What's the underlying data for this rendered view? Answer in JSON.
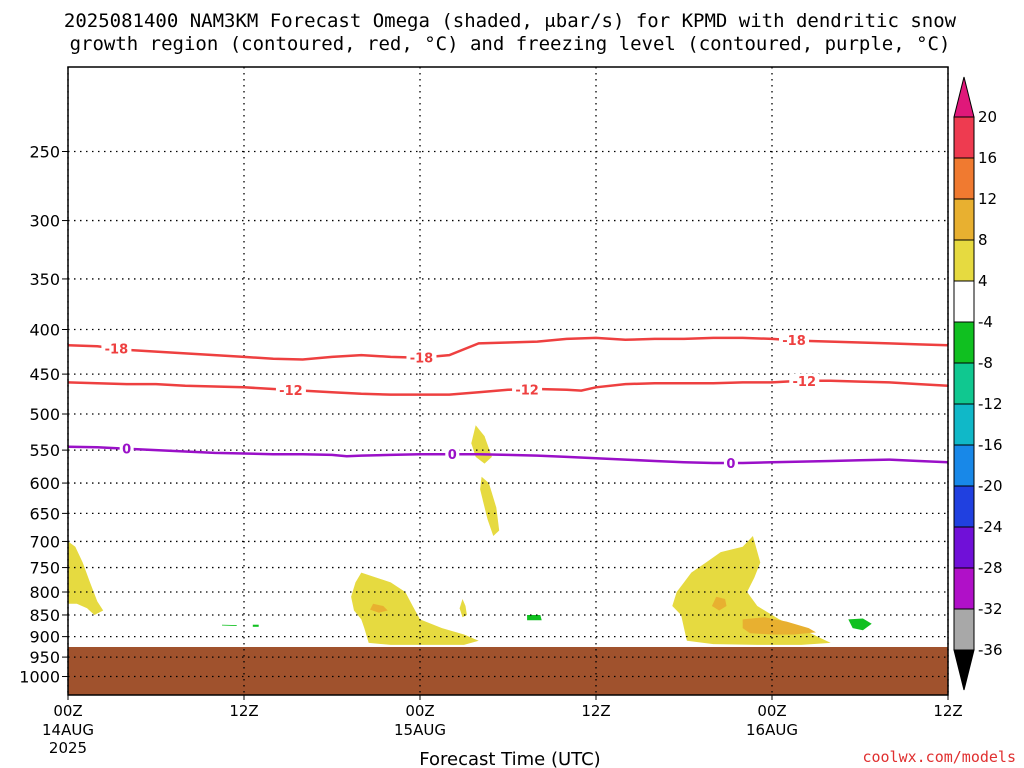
{
  "title": {
    "line1": "2025081400 NAM3KM Forecast Omega (shaded, μbar/s) for KPMD with dendritic snow",
    "line2": "growth region (contoured, red, °C) and freezing level (contoured, purple, °C)"
  },
  "credit": "coolwx.com/models",
  "chart_data": {
    "type": "heatmap",
    "xlabel": "Forecast Time (UTC)",
    "ylabel": "",
    "x_units": "hours since 2025-08-14 00Z",
    "xlim": [
      0,
      60
    ],
    "ylim": [
      1050,
      200
    ],
    "y_scale": "log-pressure",
    "grid": true,
    "x_ticks": [
      {
        "value": 0,
        "label": "00Z",
        "sub1": "14AUG",
        "sub2": "2025"
      },
      {
        "value": 12,
        "label": "12Z",
        "sub1": "",
        "sub2": ""
      },
      {
        "value": 24,
        "label": "00Z",
        "sub1": "15AUG",
        "sub2": ""
      },
      {
        "value": 36,
        "label": "12Z",
        "sub1": "",
        "sub2": ""
      },
      {
        "value": 48,
        "label": "00Z",
        "sub1": "16AUG",
        "sub2": ""
      },
      {
        "value": 60,
        "label": "12Z",
        "sub1": "",
        "sub2": ""
      }
    ],
    "y_ticks": [
      250,
      300,
      350,
      400,
      450,
      500,
      550,
      600,
      650,
      700,
      750,
      800,
      850,
      900,
      950,
      1000
    ],
    "y_tick_labels": [
      "250",
      "300",
      "350",
      "400",
      "450",
      "500",
      "550",
      "600",
      "650",
      "700",
      "750",
      "800",
      "850",
      "900",
      "950",
      "1000"
    ],
    "terrain": {
      "color": "#a0522d",
      "pressure": 925
    },
    "colorbar": {
      "labels": [
        "20",
        "16",
        "12",
        "8",
        "4",
        "-4",
        "-8",
        "-12",
        "-16",
        "-20",
        "-24",
        "-28",
        "-32",
        "-36"
      ],
      "colors": [
        "#ee3b50",
        "#f07a30",
        "#e8b030",
        "#e6da40",
        "#ffffff",
        "#10c020",
        "#10c890",
        "#10b8c8",
        "#1888e8",
        "#2040e0",
        "#7010d8",
        "#b010c8",
        "#a8a8a8"
      ],
      "top_color": "#e0187a",
      "bottom_color": "#000000"
    },
    "contours": [
      {
        "name": "-18",
        "color": "#ee4040",
        "points": [
          [
            0,
            417
          ],
          [
            2,
            418
          ],
          [
            4,
            422
          ],
          [
            6,
            424
          ],
          [
            8,
            426
          ],
          [
            10,
            428
          ],
          [
            12,
            430
          ],
          [
            14,
            432
          ],
          [
            16,
            433
          ],
          [
            18,
            430
          ],
          [
            20,
            428
          ],
          [
            22,
            430
          ],
          [
            24,
            431
          ],
          [
            26,
            428
          ],
          [
            28,
            415
          ],
          [
            30,
            414
          ],
          [
            32,
            413
          ],
          [
            34,
            410
          ],
          [
            36,
            409
          ],
          [
            38,
            411
          ],
          [
            40,
            410
          ],
          [
            42,
            410
          ],
          [
            44,
            409
          ],
          [
            46,
            409
          ],
          [
            48,
            410
          ],
          [
            50,
            412
          ],
          [
            52,
            413
          ],
          [
            54,
            414
          ],
          [
            56,
            415
          ],
          [
            58,
            416
          ],
          [
            60,
            417
          ]
        ],
        "labels": [
          {
            "x": 3.3,
            "text": "-18"
          },
          {
            "x": 24.1,
            "text": "-18"
          },
          {
            "x": 49.5,
            "text": "-18"
          }
        ]
      },
      {
        "name": "-12",
        "color": "#ee4040",
        "points": [
          [
            0,
            460
          ],
          [
            2,
            461
          ],
          [
            4,
            462
          ],
          [
            6,
            462
          ],
          [
            8,
            464
          ],
          [
            10,
            465
          ],
          [
            12,
            466
          ],
          [
            14,
            468
          ],
          [
            16,
            470
          ],
          [
            18,
            472
          ],
          [
            20,
            474
          ],
          [
            22,
            475
          ],
          [
            24,
            475
          ],
          [
            26,
            475
          ],
          [
            28,
            472
          ],
          [
            30,
            469
          ],
          [
            32,
            468
          ],
          [
            34,
            469
          ],
          [
            35,
            470
          ],
          [
            36,
            466
          ],
          [
            38,
            462
          ],
          [
            40,
            461
          ],
          [
            42,
            461
          ],
          [
            44,
            461
          ],
          [
            46,
            460
          ],
          [
            48,
            460
          ],
          [
            50,
            458
          ],
          [
            52,
            458
          ],
          [
            54,
            459
          ],
          [
            56,
            460
          ],
          [
            58,
            462
          ],
          [
            60,
            464
          ]
        ],
        "labels": [
          {
            "x": 15.2,
            "text": "-12"
          },
          {
            "x": 31.3,
            "text": "-12"
          },
          {
            "x": 50.2,
            "text": "-12"
          }
        ]
      },
      {
        "name": "0",
        "color": "#9a10c8",
        "points": [
          [
            0,
            545
          ],
          [
            2,
            546
          ],
          [
            4,
            548
          ],
          [
            6,
            550
          ],
          [
            8,
            552
          ],
          [
            10,
            554
          ],
          [
            12,
            555
          ],
          [
            14,
            556
          ],
          [
            16,
            556
          ],
          [
            18,
            557
          ],
          [
            19,
            559
          ],
          [
            20,
            558
          ],
          [
            22,
            557
          ],
          [
            24,
            556
          ],
          [
            26,
            556
          ],
          [
            28,
            556
          ],
          [
            30,
            557
          ],
          [
            32,
            558
          ],
          [
            34,
            560
          ],
          [
            36,
            562
          ],
          [
            38,
            564
          ],
          [
            40,
            566
          ],
          [
            42,
            568
          ],
          [
            44,
            569
          ],
          [
            46,
            569
          ],
          [
            48,
            568
          ],
          [
            50,
            567
          ],
          [
            52,
            566
          ],
          [
            54,
            565
          ],
          [
            56,
            564
          ],
          [
            58,
            566
          ],
          [
            60,
            568
          ]
        ],
        "labels": [
          {
            "x": 4.0,
            "text": "0"
          },
          {
            "x": 26.2,
            "text": "0"
          },
          {
            "x": 45.2,
            "text": "0"
          }
        ]
      }
    ],
    "shaded_regions": [
      {
        "name": "omega-4-8",
        "value": 4,
        "color": "#e6da40",
        "points": [
          [
            0,
            700
          ],
          [
            0.5,
            710
          ],
          [
            1,
            740
          ],
          [
            1.5,
            780
          ],
          [
            2,
            820
          ],
          [
            2.4,
            840
          ],
          [
            1.8,
            850
          ],
          [
            1.3,
            835
          ],
          [
            0.6,
            825
          ],
          [
            0,
            825
          ]
        ]
      },
      {
        "name": "omega-4-8",
        "value": 4,
        "color": "#e6da40",
        "points": [
          [
            20,
            760
          ],
          [
            21,
            770
          ],
          [
            22,
            780
          ],
          [
            23,
            800
          ],
          [
            23.5,
            830
          ],
          [
            24,
            860
          ],
          [
            25.5,
            880
          ],
          [
            27,
            895
          ],
          [
            28,
            910
          ],
          [
            27,
            920
          ],
          [
            24,
            920
          ],
          [
            22,
            920
          ],
          [
            20.5,
            915
          ],
          [
            20.2,
            880
          ],
          [
            20,
            860
          ],
          [
            19.5,
            840
          ],
          [
            19.3,
            810
          ],
          [
            19.6,
            780
          ]
        ]
      },
      {
        "name": "omega-4-8",
        "value": 4,
        "color": "#e6da40",
        "points": [
          [
            27.8,
            515
          ],
          [
            28.4,
            530
          ],
          [
            28.9,
            560
          ],
          [
            28.4,
            570
          ],
          [
            27.8,
            560
          ],
          [
            27.5,
            540
          ]
        ]
      },
      {
        "name": "omega-4-8",
        "value": 4,
        "color": "#e6da40",
        "points": [
          [
            28.2,
            590
          ],
          [
            28.7,
            600
          ],
          [
            29.2,
            640
          ],
          [
            29.4,
            680
          ],
          [
            29.0,
            690
          ],
          [
            28.6,
            660
          ],
          [
            28.3,
            630
          ],
          [
            28.1,
            610
          ]
        ]
      },
      {
        "name": "omega-4-8",
        "value": 4,
        "color": "#e6da40",
        "points": [
          [
            26.9,
            815
          ],
          [
            27.1,
            830
          ],
          [
            27.2,
            850
          ],
          [
            26.9,
            855
          ],
          [
            26.7,
            835
          ]
        ]
      },
      {
        "name": "omega-4-8",
        "value": 4,
        "color": "#e6da40",
        "points": [
          [
            42.5,
            760
          ],
          [
            43.5,
            740
          ],
          [
            44.5,
            720
          ],
          [
            46,
            710
          ],
          [
            46.7,
            690
          ],
          [
            47.2,
            740
          ],
          [
            46.8,
            770
          ],
          [
            46.3,
            800
          ],
          [
            47,
            830
          ],
          [
            48.5,
            860
          ],
          [
            50.5,
            890
          ],
          [
            52,
            915
          ],
          [
            50,
            920
          ],
          [
            47,
            920
          ],
          [
            44,
            918
          ],
          [
            42.2,
            910
          ],
          [
            42,
            880
          ],
          [
            41.8,
            850
          ],
          [
            41.2,
            830
          ],
          [
            41.5,
            800
          ],
          [
            42,
            780
          ]
        ]
      },
      {
        "name": "omega-8-12",
        "value": 8,
        "color": "#e8b030",
        "points": [
          [
            20.8,
            825
          ],
          [
            21.5,
            830
          ],
          [
            21.8,
            840
          ],
          [
            21.2,
            845
          ],
          [
            20.6,
            838
          ]
        ]
      },
      {
        "name": "omega-8-12",
        "value": 8,
        "color": "#e8b030",
        "points": [
          [
            44.2,
            810
          ],
          [
            44.8,
            815
          ],
          [
            44.9,
            830
          ],
          [
            44.4,
            840
          ],
          [
            43.9,
            830
          ]
        ]
      },
      {
        "name": "omega-8-12",
        "value": 8,
        "color": "#e8b030",
        "points": [
          [
            46,
            860
          ],
          [
            47.5,
            855
          ],
          [
            49,
            865
          ],
          [
            50.5,
            880
          ],
          [
            51,
            890
          ],
          [
            49.5,
            895
          ],
          [
            48,
            895
          ],
          [
            46.5,
            892
          ],
          [
            46,
            880
          ]
        ]
      },
      {
        "name": "omega-minus-4",
        "value": -4,
        "color": "#10c020",
        "points": [
          [
            31.3,
            850
          ],
          [
            32.2,
            850
          ],
          [
            32.3,
            862
          ],
          [
            31.3,
            862
          ]
        ]
      },
      {
        "name": "omega-minus-4",
        "value": -4,
        "color": "#10c020",
        "points": [
          [
            53.2,
            860
          ],
          [
            54.2,
            858
          ],
          [
            54.8,
            870
          ],
          [
            54.2,
            885
          ],
          [
            53.5,
            880
          ]
        ]
      },
      {
        "name": "omega-minus-4",
        "value": -4,
        "color": "#10c020",
        "points": [
          [
            12.6,
            872
          ],
          [
            13.0,
            872
          ],
          [
            13.0,
            877
          ],
          [
            12.6,
            877
          ]
        ]
      },
      {
        "name": "omega-minus-4",
        "value": -4,
        "color": "#10c020",
        "points": [
          [
            10.5,
            872
          ],
          [
            11.5,
            873
          ],
          [
            11.5,
            875
          ],
          [
            10.5,
            874
          ]
        ]
      }
    ]
  }
}
